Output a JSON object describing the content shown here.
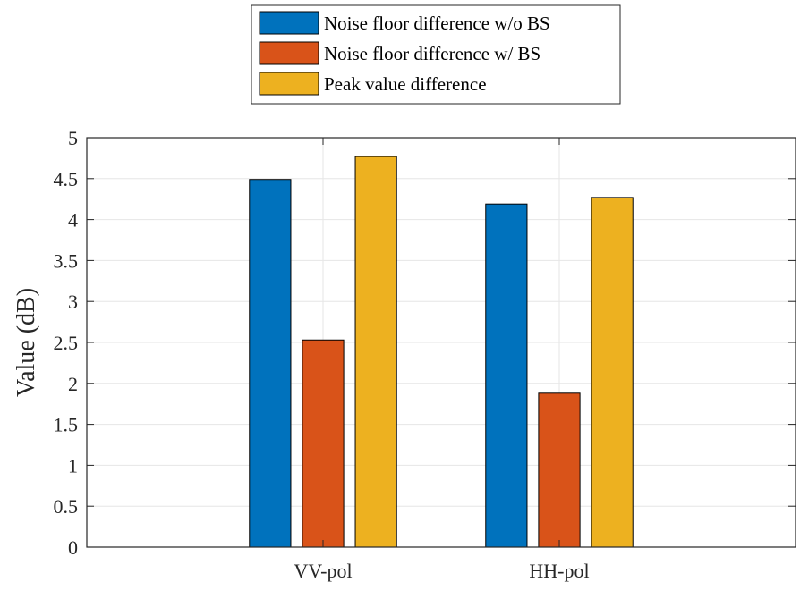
{
  "chart_data": {
    "type": "bar",
    "categories": [
      "VV-pol",
      "HH-pol"
    ],
    "series": [
      {
        "name": "Noise floor difference w/o BS",
        "values": [
          4.49,
          4.19
        ],
        "color": "#0072BD"
      },
      {
        "name": "Noise floor difference w/ BS",
        "values": [
          2.53,
          1.88
        ],
        "color": "#D95319"
      },
      {
        "name": "Peak value difference",
        "values": [
          4.77,
          4.27
        ],
        "color": "#EDB120"
      }
    ],
    "ylabel": "Value (dB)",
    "xlabel": "",
    "ylim": [
      0,
      5
    ],
    "yticks": [
      "0",
      "0.5",
      "1",
      "1.5",
      "2",
      "2.5",
      "3",
      "3.5",
      "4",
      "4.5",
      "5"
    ],
    "grid": true,
    "legend_position": "top-center, outside plot"
  }
}
